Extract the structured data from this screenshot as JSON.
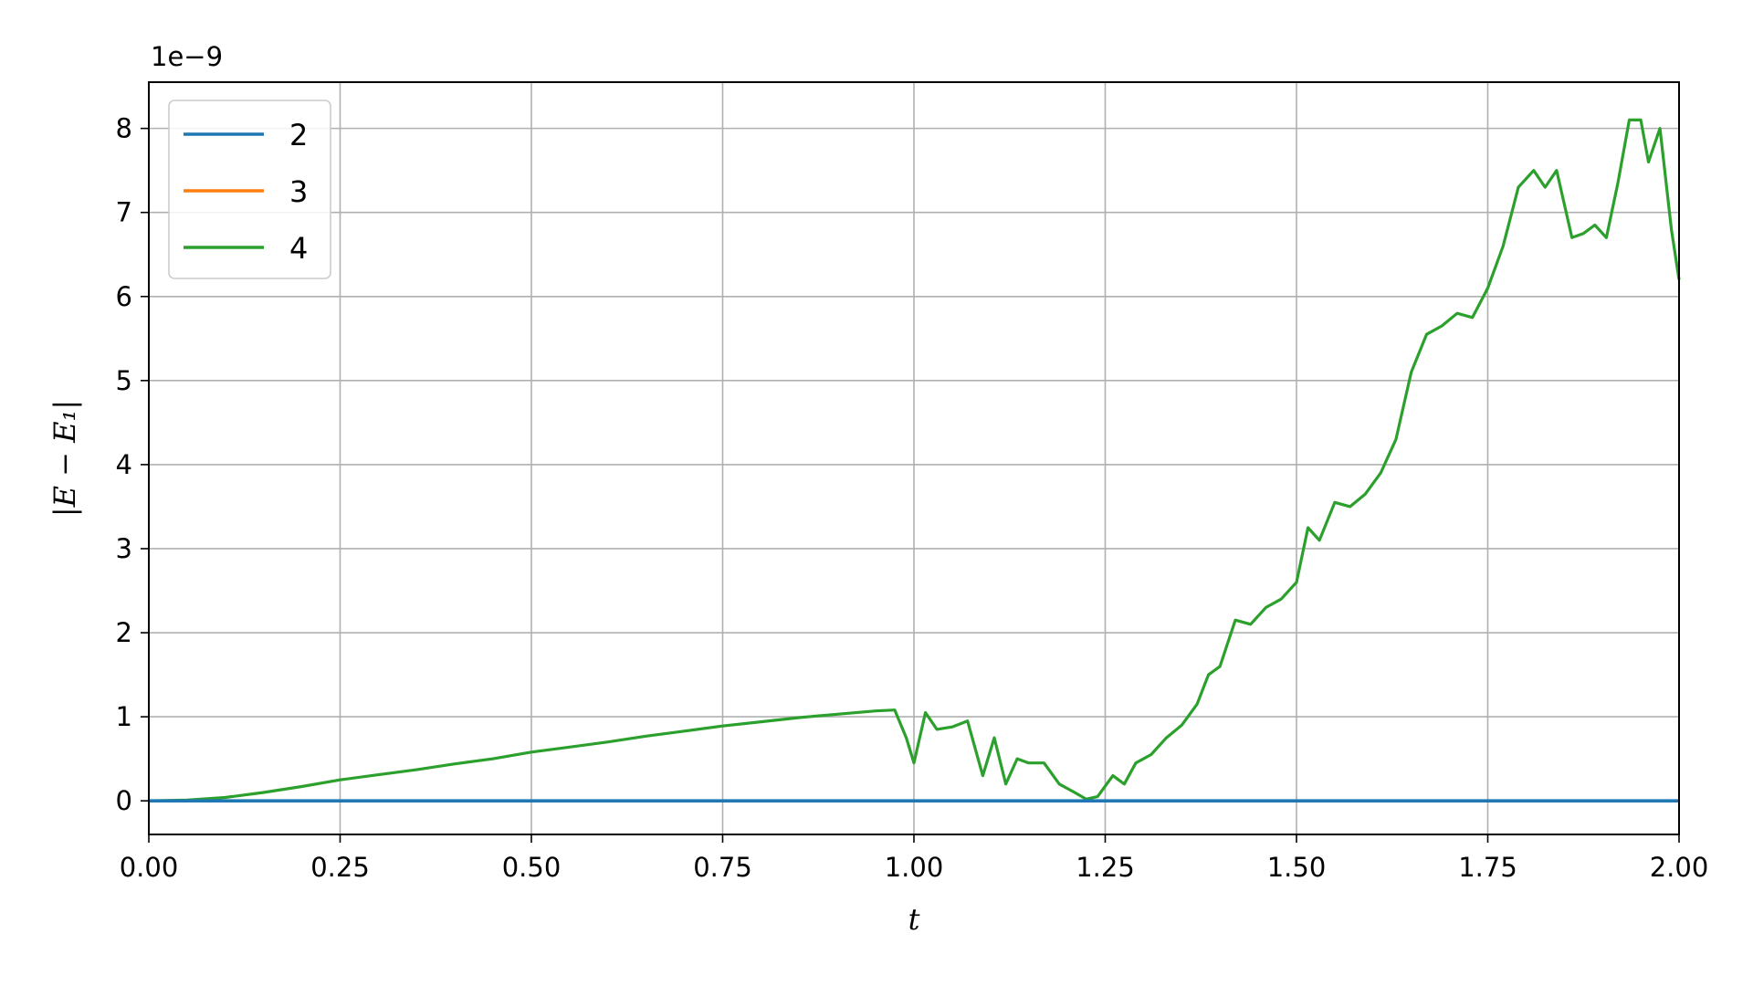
{
  "chart_data": {
    "type": "line",
    "xlabel": "t",
    "ylabel": "|E − E₁|",
    "y_offset_label": "1e−9",
    "xlim": [
      0.0,
      2.0
    ],
    "ylim": [
      -0.4,
      8.55
    ],
    "x_ticks": [
      0.0,
      0.25,
      0.5,
      0.75,
      1.0,
      1.25,
      1.5,
      1.75,
      2.0
    ],
    "x_tick_labels": [
      "0.00",
      "0.25",
      "0.50",
      "0.75",
      "1.00",
      "1.25",
      "1.50",
      "1.75",
      "2.00"
    ],
    "y_ticks": [
      0,
      1,
      2,
      3,
      4,
      5,
      6,
      7,
      8
    ],
    "y_tick_labels": [
      "0",
      "1",
      "2",
      "3",
      "4",
      "5",
      "6",
      "7",
      "8"
    ],
    "grid": true,
    "legend_position": "top-left",
    "series": [
      {
        "name": "2",
        "color": "#1f77b4",
        "x": [
          0.0,
          2.0
        ],
        "y": [
          0.0,
          0.0
        ]
      },
      {
        "name": "3",
        "color": "#ff7f0e",
        "x": [
          0.0,
          2.0
        ],
        "y": [
          0.0,
          0.0
        ]
      },
      {
        "name": "4",
        "color": "#2ca02c",
        "x": [
          0.0,
          0.05,
          0.1,
          0.15,
          0.2,
          0.25,
          0.3,
          0.35,
          0.4,
          0.45,
          0.5,
          0.55,
          0.6,
          0.65,
          0.7,
          0.75,
          0.8,
          0.85,
          0.9,
          0.95,
          0.975,
          0.99,
          1.0,
          1.015,
          1.03,
          1.05,
          1.07,
          1.09,
          1.105,
          1.12,
          1.135,
          1.15,
          1.17,
          1.19,
          1.21,
          1.225,
          1.24,
          1.26,
          1.275,
          1.29,
          1.31,
          1.33,
          1.35,
          1.37,
          1.385,
          1.4,
          1.42,
          1.44,
          1.46,
          1.48,
          1.5,
          1.515,
          1.53,
          1.55,
          1.57,
          1.59,
          1.61,
          1.63,
          1.65,
          1.67,
          1.69,
          1.71,
          1.73,
          1.75,
          1.77,
          1.79,
          1.81,
          1.825,
          1.84,
          1.86,
          1.875,
          1.89,
          1.905,
          1.92,
          1.935,
          1.95,
          1.96,
          1.975,
          1.99,
          2.0
        ],
        "y": [
          0.0,
          0.01,
          0.04,
          0.1,
          0.17,
          0.25,
          0.31,
          0.37,
          0.44,
          0.5,
          0.58,
          0.64,
          0.7,
          0.77,
          0.83,
          0.89,
          0.94,
          0.99,
          1.03,
          1.07,
          1.08,
          0.75,
          0.45,
          1.05,
          0.85,
          0.88,
          0.95,
          0.3,
          0.75,
          0.2,
          0.5,
          0.45,
          0.45,
          0.2,
          0.1,
          0.02,
          0.05,
          0.3,
          0.2,
          0.45,
          0.55,
          0.75,
          0.9,
          1.15,
          1.5,
          1.6,
          2.15,
          2.1,
          2.3,
          2.4,
          2.6,
          3.25,
          3.1,
          3.55,
          3.5,
          3.65,
          3.9,
          4.3,
          5.1,
          5.55,
          5.65,
          5.8,
          5.75,
          6.1,
          6.6,
          7.3,
          7.5,
          7.3,
          7.5,
          6.7,
          6.75,
          6.85,
          6.7,
          7.35,
          8.1,
          8.1,
          7.6,
          8.0,
          6.8,
          6.2
        ]
      }
    ]
  }
}
